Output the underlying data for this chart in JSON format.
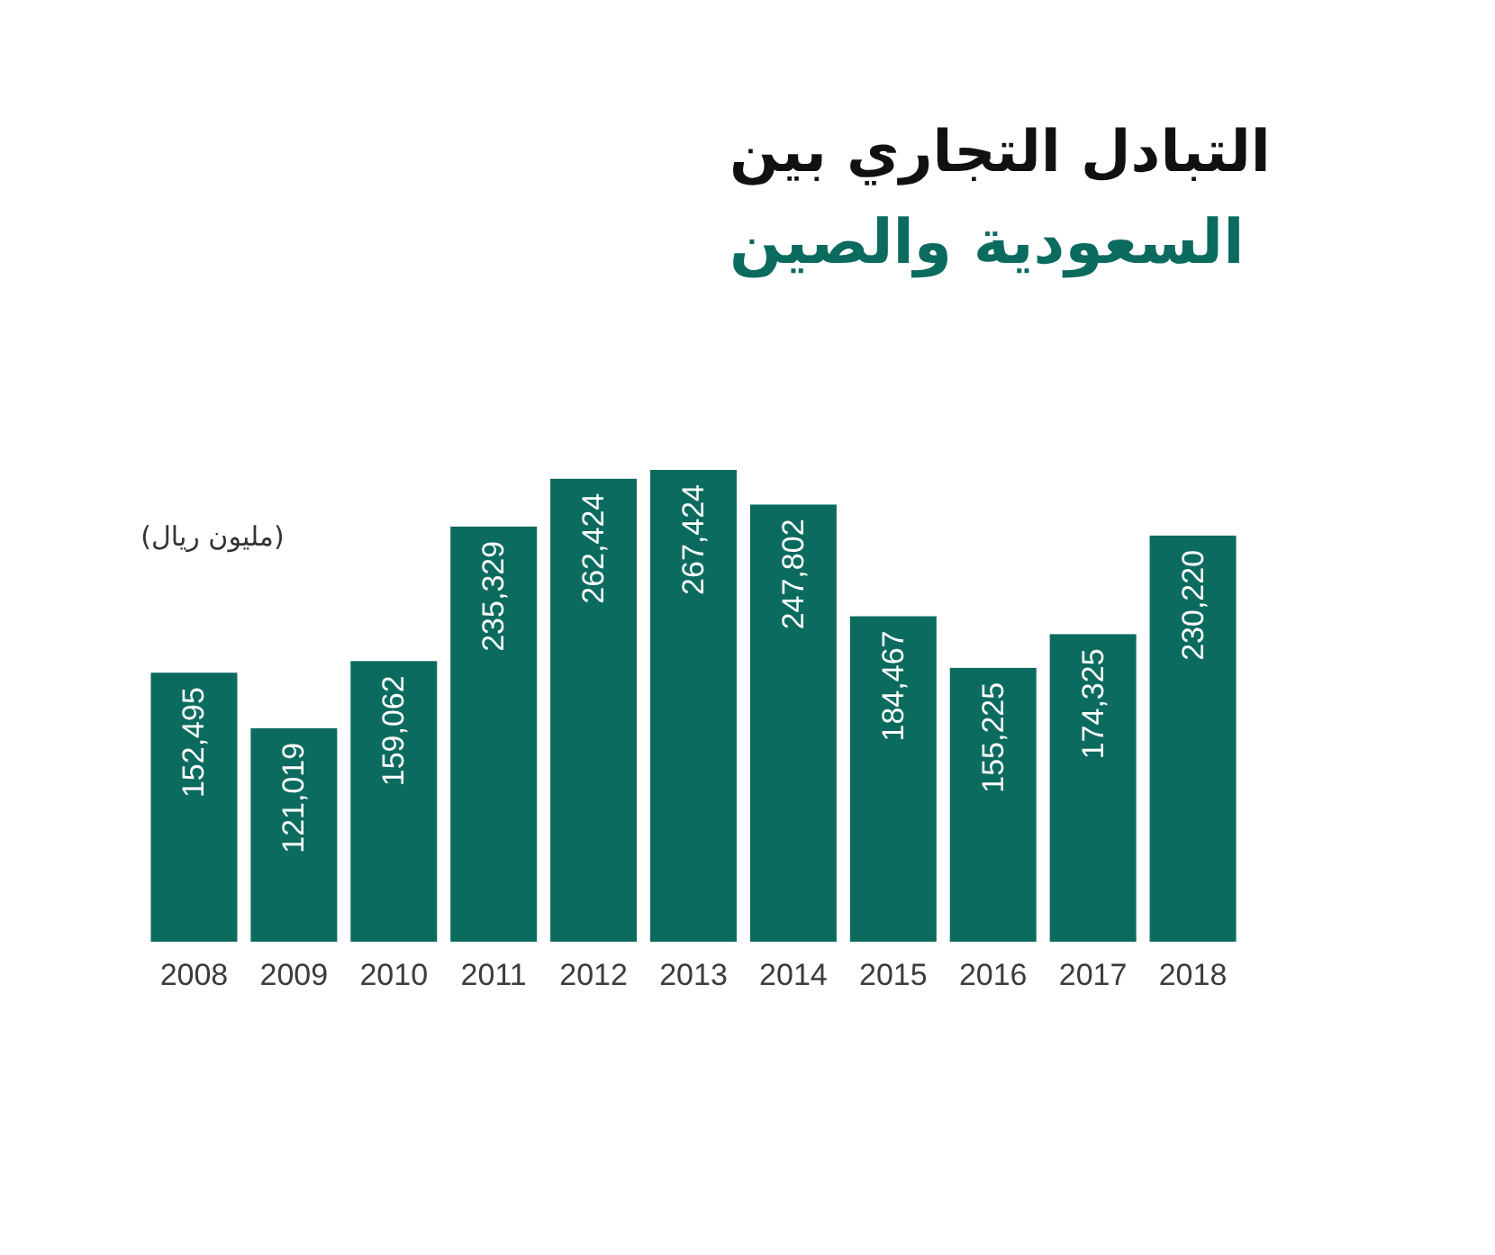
{
  "chart_data": {
    "type": "bar",
    "title": "التبادل التجاري بين",
    "subtitle": "السعودية والصين",
    "annotations": [
      "(مليون ريال)"
    ],
    "categories": [
      "2008",
      "2009",
      "2010",
      "2011",
      "2012",
      "2013",
      "2014",
      "2015",
      "2016",
      "2017",
      "2018"
    ],
    "values": [
      152495,
      121019,
      159062,
      235329,
      262424,
      267424,
      247802,
      184467,
      155225,
      174325,
      230220
    ],
    "value_labels": [
      "152,495",
      "121,019",
      "159,062",
      "235,329",
      "262,424",
      "267,424",
      "247,802",
      "184,467",
      "155,225",
      "174,325",
      "230,220"
    ],
    "color": "#0b6b5f"
  }
}
